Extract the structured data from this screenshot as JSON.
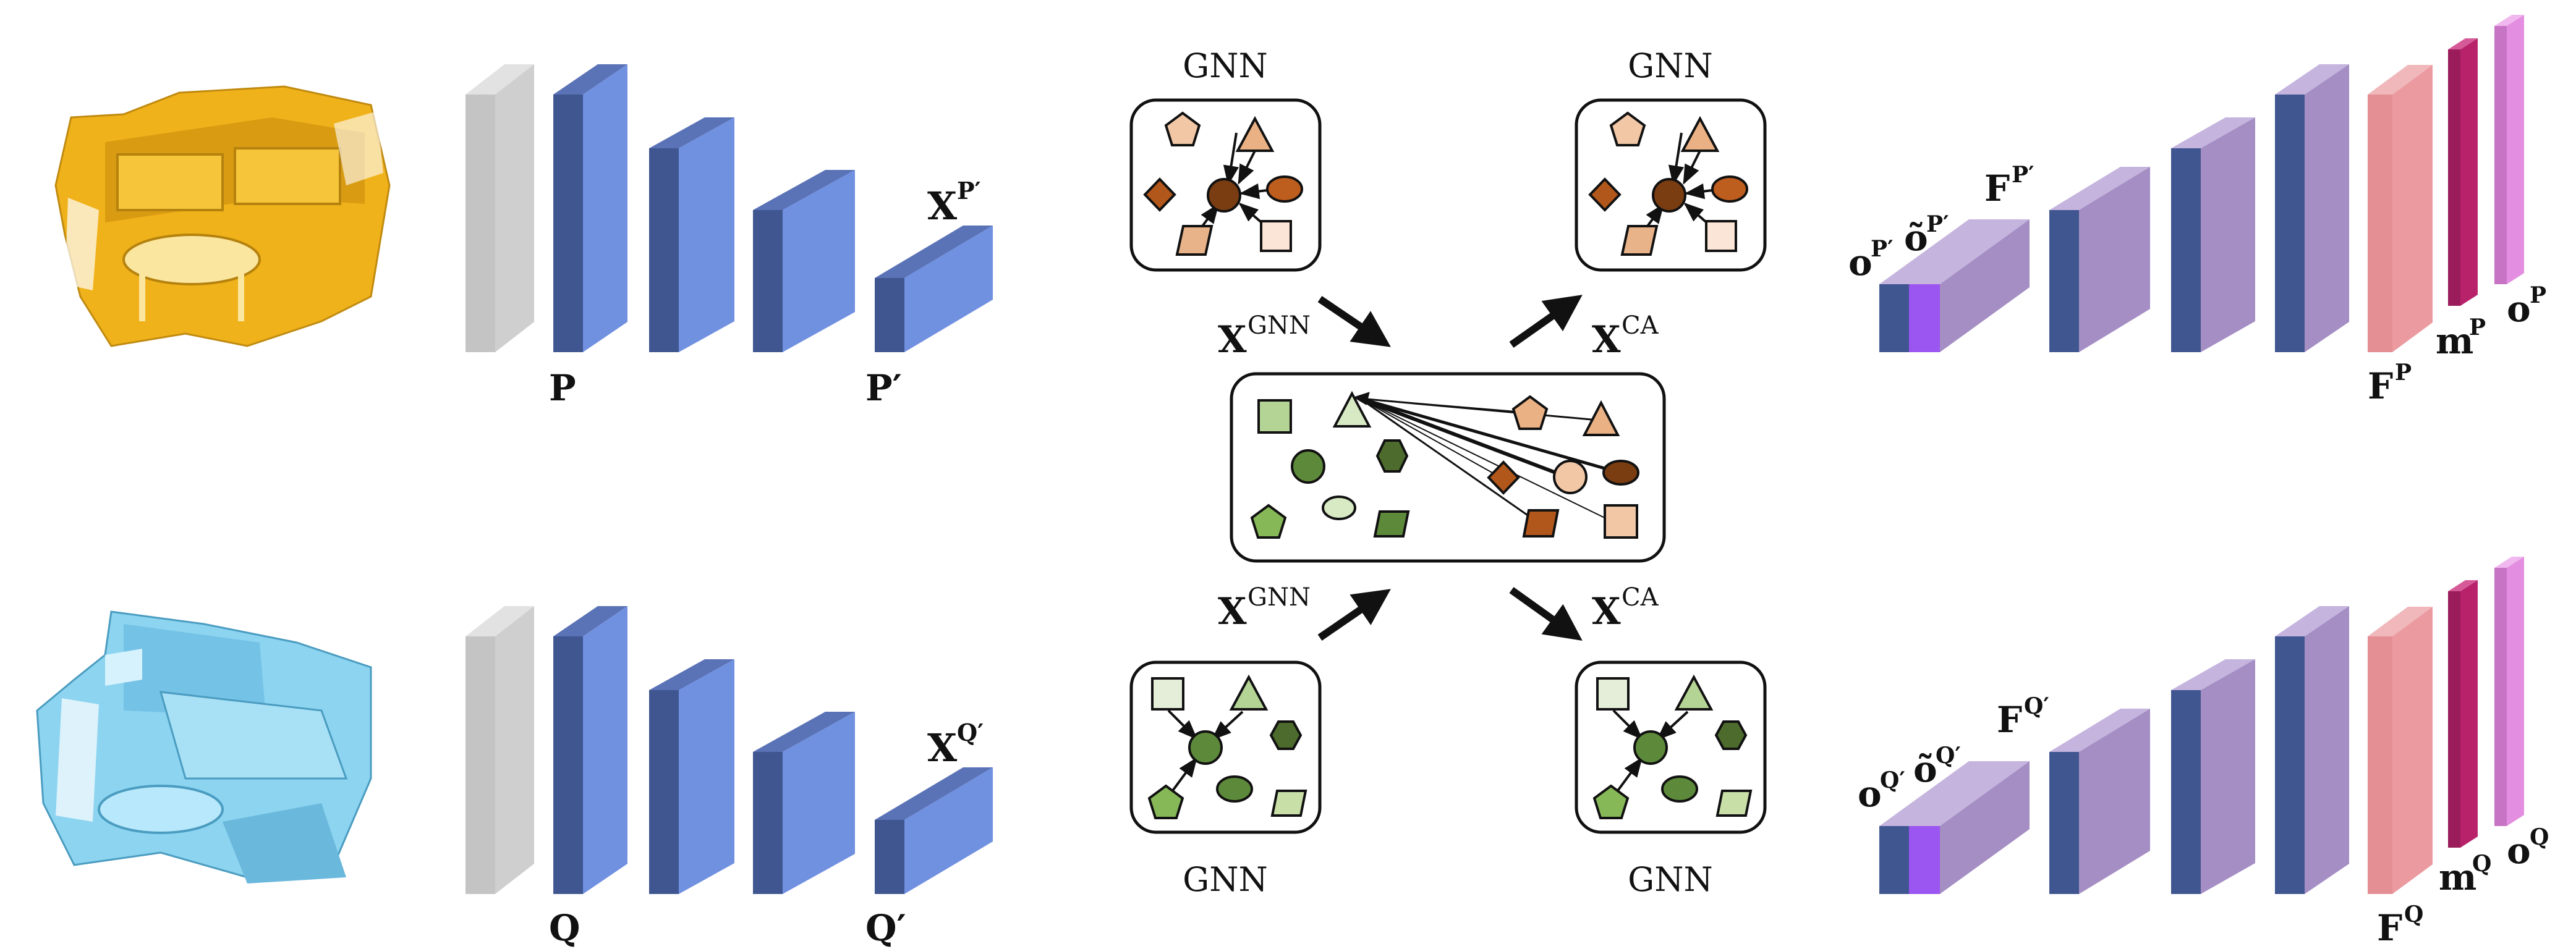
{
  "labels": {
    "P": "P",
    "P_prime": "P′",
    "Q": "Q",
    "Q_prime": "Q′",
    "X_P_prime": {
      "base": "X",
      "sup": "P′"
    },
    "X_Q_prime": {
      "base": "X",
      "sup": "Q′"
    },
    "X_GNN_top": {
      "base": "X",
      "sup": "GNN"
    },
    "X_GNN_bottom": {
      "base": "X",
      "sup": "GNN"
    },
    "X_CA_top": {
      "base": "X",
      "sup": "CA"
    },
    "X_CA_bottom": {
      "base": "X",
      "sup": "CA"
    },
    "GNN_top_left": "GNN",
    "GNN_top_right": "GNN",
    "GNN_bottom_left": "GNN",
    "GNN_bottom_right": "GNN",
    "o_P_prime": {
      "base": "o",
      "sup": "P′"
    },
    "o_tilde_P_prime": {
      "base": "õ",
      "sup": "P′"
    },
    "F_P_prime": {
      "base": "F",
      "sup": "P′"
    },
    "F_P": {
      "base": "F",
      "sup": "P"
    },
    "m_P": {
      "base": "m",
      "sup": "P"
    },
    "o_P": {
      "base": "o",
      "sup": "P"
    },
    "o_Q_prime": {
      "base": "o",
      "sup": "Q′"
    },
    "o_tilde_Q_prime": {
      "base": "õ",
      "sup": "Q′"
    },
    "F_Q_prime": {
      "base": "F",
      "sup": "Q′"
    },
    "F_Q": {
      "base": "F",
      "sup": "Q"
    },
    "m_Q": {
      "base": "m",
      "sup": "Q"
    },
    "o_Q": {
      "base": "o",
      "sup": "Q"
    }
  },
  "colors": {
    "encoder_blue": "#7090e0",
    "encoder_dark": "#3f5690",
    "input_gray": "#c8c8c8",
    "decoder_purple": "#a48ec4",
    "overlap_pink": "#eb9aa0",
    "m_magenta": "#b7226b",
    "o_pink": "#e38ee0",
    "point_cloud_P": "#f0b21a",
    "point_cloud_Q": "#8cd4f0"
  }
}
